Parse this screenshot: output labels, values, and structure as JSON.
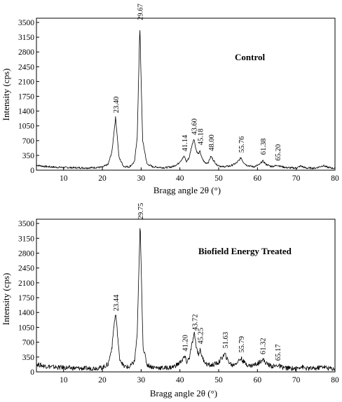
{
  "chart_data": [
    {
      "type": "line",
      "title": "Control",
      "xlabel": "Bragg angle 2θ (°)",
      "ylabel": "Intensity (cps)",
      "xlim": [
        3,
        80
      ],
      "ylim": [
        0,
        3600
      ],
      "xticks": [
        10,
        20,
        30,
        40,
        50,
        60,
        70,
        80
      ],
      "yticks": [
        0,
        350,
        700,
        1050,
        1400,
        1750,
        2100,
        2450,
        2800,
        3150,
        3500
      ],
      "grid": false,
      "color": "#000000",
      "series": [
        {
          "x": [
            3,
            5,
            8,
            12,
            16,
            20,
            21.5,
            22.5,
            23.0,
            23.4,
            23.8,
            24.3,
            25.5,
            27,
            28.3,
            29.0,
            29.4,
            29.67,
            29.95,
            30.4,
            31.5,
            33,
            36,
            38,
            39.5,
            40.6,
            41.14,
            41.7,
            42.4,
            43.0,
            43.6,
            44.2,
            44.7,
            45.18,
            45.7,
            46.5,
            47.3,
            48.0,
            48.7,
            49.5,
            51,
            53,
            54.6,
            55.3,
            55.76,
            56.3,
            57.2,
            59,
            60.5,
            61.38,
            62.2,
            63.5,
            64.5,
            65.2,
            66.0,
            67.5,
            70,
            71.2,
            72.5,
            75,
            77,
            78,
            80
          ],
          "y": [
            120,
            90,
            70,
            60,
            55,
            70,
            140,
            450,
            900,
            1250,
            850,
            300,
            90,
            80,
            200,
            800,
            2400,
            3450,
            2300,
            700,
            150,
            80,
            60,
            80,
            150,
            270,
            330,
            200,
            300,
            550,
            750,
            480,
            380,
            450,
            280,
            170,
            180,
            330,
            230,
            130,
            80,
            100,
            170,
            240,
            300,
            200,
            120,
            80,
            130,
            220,
            140,
            90,
            100,
            120,
            90,
            60,
            50,
            100,
            50,
            50,
            110,
            70,
            40
          ]
        }
      ],
      "peak_labels": [
        "23.40",
        "29.67",
        "41.14",
        "43.60",
        "45.18",
        "48.00",
        "55.76",
        "61.38",
        "65.20"
      ],
      "peak_label_positions": [
        23.4,
        29.67,
        41.14,
        43.6,
        45.18,
        48.0,
        55.76,
        61.38,
        65.2
      ],
      "peak_label_heights": [
        1320,
        3520,
        410,
        800,
        560,
        420,
        380,
        330,
        190
      ]
    },
    {
      "type": "line",
      "title": "Biofield Energy Treated",
      "xlabel": "Bragg angle 2θ (°)",
      "ylabel": "Intensity (cps)",
      "xlim": [
        3,
        80
      ],
      "ylim": [
        0,
        3600
      ],
      "xticks": [
        10,
        20,
        30,
        40,
        50,
        60,
        70,
        80
      ],
      "yticks": [
        0,
        350,
        700,
        1050,
        1400,
        1750,
        2100,
        2450,
        2800,
        3150,
        3500
      ],
      "grid": false,
      "color": "#000000",
      "series": [
        {
          "x": [
            3,
            5,
            8,
            12,
            16,
            20,
            21.5,
            22.5,
            23.0,
            23.44,
            23.9,
            24.4,
            25.5,
            27,
            28.3,
            29.0,
            29.5,
            29.75,
            30.05,
            30.5,
            31.5,
            33,
            36,
            38,
            39.5,
            40.6,
            41.2,
            41.8,
            42.5,
            43.1,
            43.72,
            44.3,
            44.8,
            45.25,
            45.8,
            46.8,
            48,
            50,
            50.8,
            51.63,
            52.4,
            53.5,
            54.8,
            55.79,
            56.6,
            58,
            60,
            61.32,
            62.3,
            63.5,
            64.5,
            65.17,
            66.0,
            67.5,
            70,
            71.2,
            72.5,
            75,
            77,
            78,
            80
          ],
          "y": [
            180,
            140,
            110,
            90,
            80,
            100,
            180,
            600,
            1100,
            1380,
            900,
            340,
            130,
            110,
            250,
            900,
            2700,
            3500,
            2300,
            600,
            170,
            110,
            90,
            110,
            180,
            280,
            360,
            230,
            350,
            650,
            900,
            560,
            420,
            520,
            330,
            190,
            150,
            220,
            330,
            420,
            260,
            150,
            230,
            320,
            220,
            140,
            190,
            300,
            200,
            140,
            130,
            160,
            120,
            90,
            80,
            130,
            80,
            80,
            130,
            90,
            70
          ]
        }
      ],
      "peak_labels": [
        "23.44",
        "29.75",
        "41.20",
        "43.72",
        "45.25",
        "51.63",
        "55.79",
        "61.32",
        "65.17"
      ],
      "peak_label_positions": [
        23.44,
        29.75,
        41.2,
        43.72,
        45.25,
        51.63,
        55.79,
        61.32,
        65.17
      ],
      "peak_label_heights": [
        1400,
        3560,
        450,
        940,
        620,
        520,
        420,
        380,
        230
      ]
    }
  ]
}
